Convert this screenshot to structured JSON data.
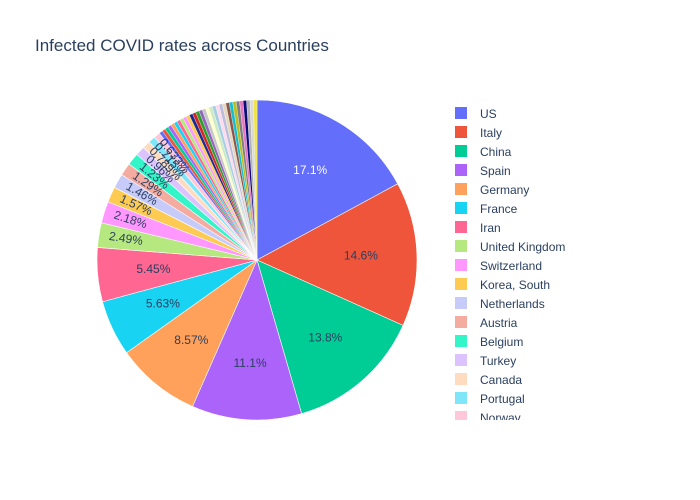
{
  "chart_data": {
    "type": "pie",
    "title": "Infected COVID rates across Countries",
    "direction": "clockwise",
    "start": "12 o'clock",
    "slices": [
      {
        "label": "US",
        "value": 17.1,
        "text": "17.1%",
        "color": "#636efa",
        "text_color": "#ffffff"
      },
      {
        "label": "Italy",
        "value": 14.6,
        "text": "14.6%",
        "color": "#ef553b",
        "text_color": "#2a3f5f"
      },
      {
        "label": "China",
        "value": 13.8,
        "text": "13.8%",
        "color": "#00cc96",
        "text_color": "#2a3f5f"
      },
      {
        "label": "Spain",
        "value": 11.1,
        "text": "11.1%",
        "color": "#ab63fa",
        "text_color": "#2a3f5f"
      },
      {
        "label": "Germany",
        "value": 8.57,
        "text": "8.57%",
        "color": "#ffa15a",
        "text_color": "#2a3f5f"
      },
      {
        "label": "France",
        "value": 5.63,
        "text": "5.63%",
        "color": "#19d3f3",
        "text_color": "#2a3f5f"
      },
      {
        "label": "Iran",
        "value": 5.45,
        "text": "5.45%",
        "color": "#ff6692",
        "text_color": "#2a3f5f"
      },
      {
        "label": "United Kingdom",
        "value": 2.49,
        "text": "2.49%",
        "color": "#b6e880",
        "text_color": "#2a3f5f"
      },
      {
        "label": "Switzerland",
        "value": 2.18,
        "text": "2.18%",
        "color": "#ff97ff",
        "text_color": "#2a3f5f"
      },
      {
        "label": "Korea, South",
        "value": 1.57,
        "text": "1.57%",
        "color": "#fecb52",
        "text_color": "#2a3f5f"
      },
      {
        "label": "Netherlands",
        "value": 1.46,
        "text": "1.46%",
        "color": "#c6cbfa",
        "text_color": "#2a3f5f"
      },
      {
        "label": "Austria",
        "value": 1.29,
        "text": "1.29%",
        "color": "#f4aba0",
        "text_color": "#2a3f5f"
      },
      {
        "label": "Belgium",
        "value": 1.23,
        "text": "1.23%",
        "color": "#33f5c8",
        "text_color": "#2a3f5f"
      },
      {
        "label": "Turkey",
        "value": 0.96,
        "text": "0.96%",
        "color": "#ddc3fd",
        "text_color": "#2a3f5f"
      },
      {
        "label": "Canada",
        "value": 0.789,
        "text": "0.789%",
        "color": "#ffdcc0",
        "text_color": "#2a3f5f"
      },
      {
        "label": "Portugal",
        "value": 0.715,
        "text": "0.715%",
        "color": "#7fe6f9",
        "text_color": "#2a3f5f"
      },
      {
        "label": "Norway",
        "value": 0.633,
        "text": "0.633%",
        "color": "#ffc7d8",
        "text_color": "#2a3f5f"
      }
    ],
    "other_small_slices_colors": [
      "#636efa",
      "#ef553b",
      "#00cc96",
      "#ab63fa",
      "#ffa15a",
      "#19d3f3",
      "#ff6692",
      "#b6e880",
      "#ff97ff",
      "#fecb52",
      "#1f2a8f",
      "#d62728",
      "#2ca02c",
      "#9467bd",
      "#c7c7c7",
      "#ffffcc",
      "#ccebc5",
      "#a6cee3",
      "#fddaec",
      "#bcbddc",
      "#e5d8bd",
      "#8c564b",
      "#17becf",
      "#bcbd22",
      "#7f7f7f",
      "#e377c2",
      "#0b0b7a",
      "#b3b3b3",
      "#d9d9d9",
      "#f0e442"
    ],
    "legend": {
      "placement": "right",
      "visible_entries": [
        "US",
        "Italy",
        "China",
        "Spain",
        "Germany",
        "France",
        "Iran",
        "United Kingdom",
        "Switzerland",
        "Korea, South",
        "Netherlands",
        "Austria",
        "Belgium",
        "Turkey",
        "Canada",
        "Portugal",
        "Norway"
      ]
    }
  }
}
